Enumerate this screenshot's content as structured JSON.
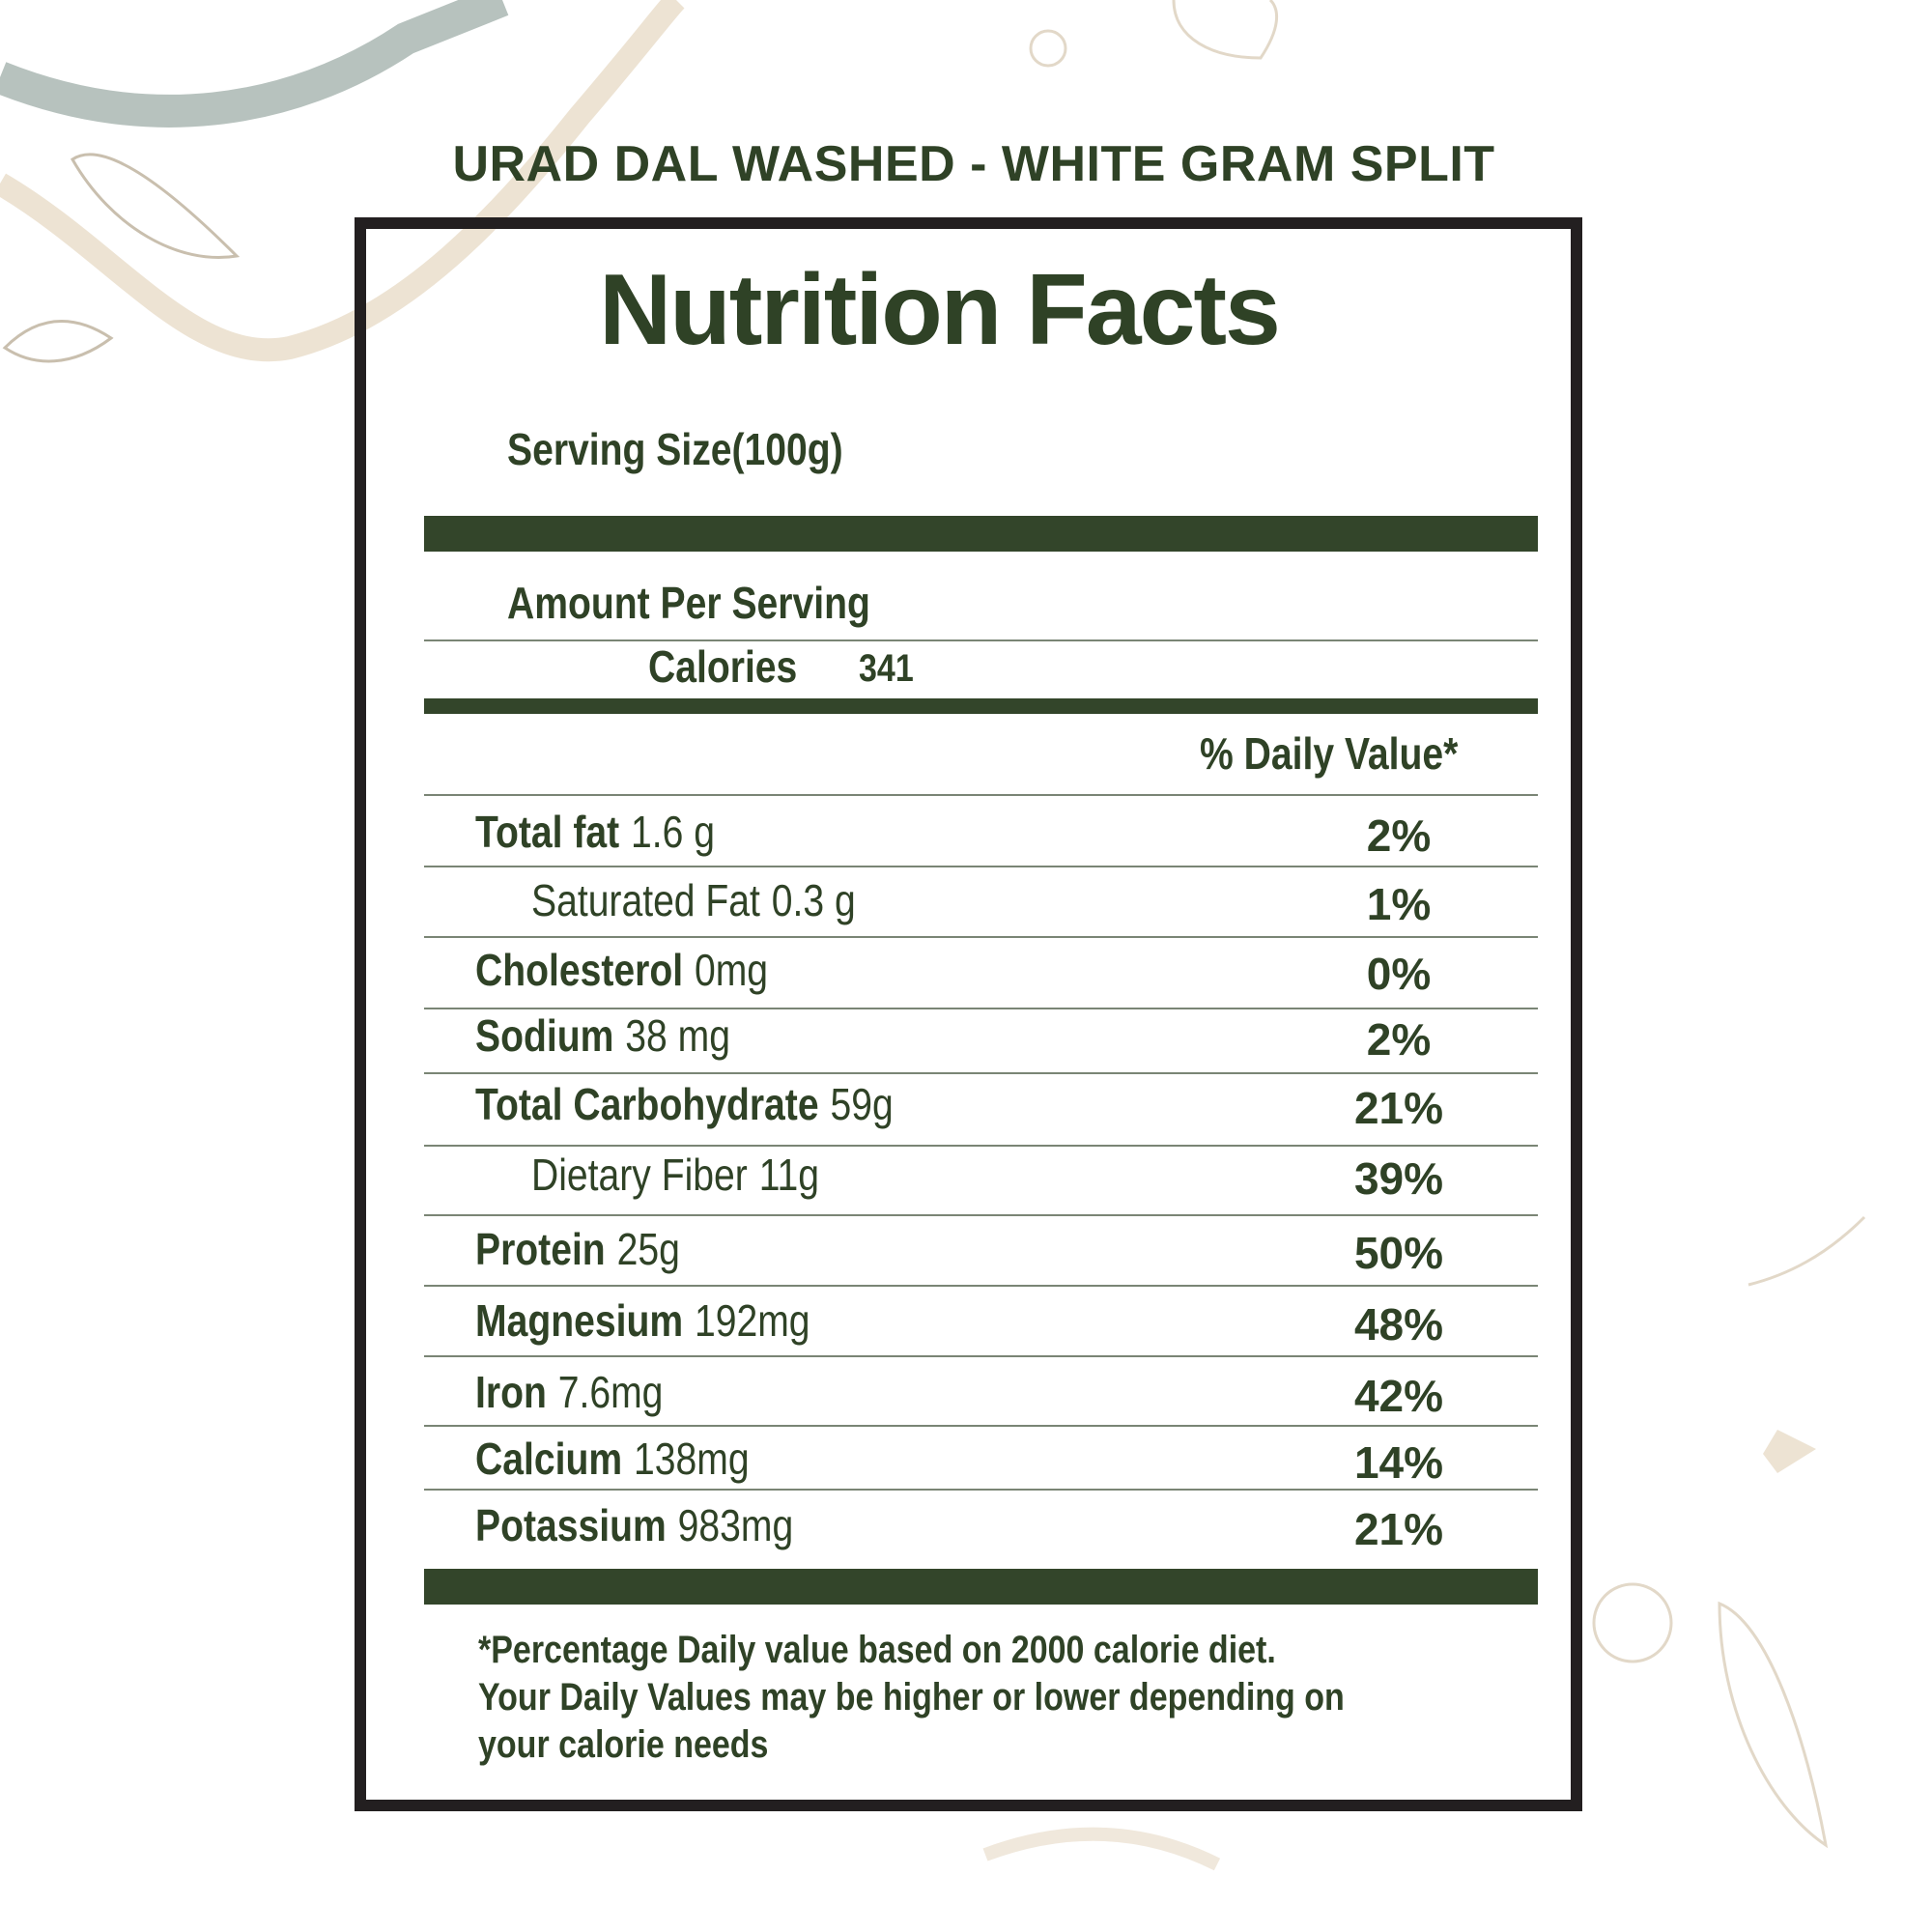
{
  "header": {
    "title": "URAD DAL WASHED - WHITE GRAM SPLIT"
  },
  "label": {
    "title": "Nutrition Facts",
    "serving_size": "Serving Size(100g)",
    "amount_per_serving": "Amount Per Serving",
    "calories_label": "Calories",
    "calories_value": "341",
    "daily_value_header": "% Daily Value*",
    "rows": [
      {
        "name": "Total fat",
        "amount": "1.6 g",
        "daily_value": "2%",
        "sub": false
      },
      {
        "name": "Saturated Fat",
        "amount": "0.3 g",
        "daily_value": "1%",
        "sub": true
      },
      {
        "name": "Cholesterol",
        "amount": "0mg",
        "daily_value": "0%",
        "sub": false
      },
      {
        "name": "Sodium",
        "amount": "38 mg",
        "daily_value": "2%",
        "sub": false
      },
      {
        "name": "Total Carbohydrate",
        "amount": "59g",
        "daily_value": "21%",
        "sub": false
      },
      {
        "name": "Dietary Fiber",
        "amount": "11g",
        "daily_value": "39%",
        "sub": true
      },
      {
        "name": "Protein",
        "amount": "25g",
        "daily_value": "50%",
        "sub": false
      },
      {
        "name": "Magnesium",
        "amount": "192mg",
        "daily_value": "48%",
        "sub": false
      },
      {
        "name": "Iron",
        "amount": "7.6mg",
        "daily_value": "42%",
        "sub": false
      },
      {
        "name": "Calcium",
        "amount": "138mg",
        "daily_value": "14%",
        "sub": false
      },
      {
        "name": "Potassium",
        "amount": "983mg",
        "daily_value": "21%",
        "sub": false
      }
    ],
    "footnote": [
      "*Percentage Daily value based on 2000 calorie diet.",
      "Your Daily Values may be higher or lower depending on",
      "your calorie needs"
    ]
  }
}
